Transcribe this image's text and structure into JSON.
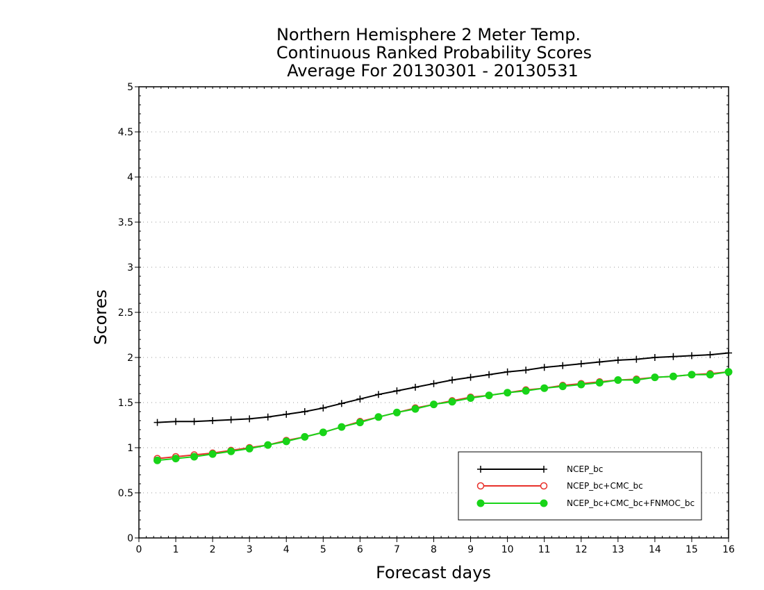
{
  "chart_data": {
    "type": "line",
    "title_lines": [
      "Northern Hemisphere 2 Meter Temp.",
      "Continuous Ranked Probability Scores",
      "Average For 20130301 - 20130531"
    ],
    "xlabel": "Forecast days",
    "ylabel": "Scores",
    "xlim": [
      0,
      16
    ],
    "ylim": [
      0,
      5
    ],
    "xticks": [
      0,
      1,
      2,
      3,
      4,
      5,
      6,
      7,
      8,
      9,
      10,
      11,
      12,
      13,
      14,
      15,
      16
    ],
    "yticks": [
      0,
      0.5,
      1,
      1.5,
      2,
      2.5,
      3,
      3.5,
      4,
      4.5,
      5
    ],
    "ytick_labels": [
      "0",
      "0.5",
      "1",
      "1.5",
      "2",
      "2.5",
      "3",
      "3.5",
      "4",
      "4.5",
      "5"
    ],
    "grid": "horizontal dotted",
    "legend_position": "bottom-right",
    "x": [
      0.5,
      1,
      1.5,
      2,
      2.5,
      3,
      3.5,
      4,
      4.5,
      5,
      5.5,
      6,
      6.5,
      7,
      7.5,
      8,
      8.5,
      9,
      9.5,
      10,
      10.5,
      11,
      11.5,
      12,
      12.5,
      13,
      13.5,
      14,
      14.5,
      15,
      15.5,
      16
    ],
    "series": [
      {
        "name": "NCEP_bc",
        "color": "#000000",
        "marker": "plus",
        "values": [
          1.28,
          1.29,
          1.29,
          1.3,
          1.31,
          1.32,
          1.34,
          1.37,
          1.4,
          1.44,
          1.49,
          1.54,
          1.59,
          1.63,
          1.67,
          1.71,
          1.75,
          1.78,
          1.81,
          1.84,
          1.86,
          1.89,
          1.91,
          1.93,
          1.95,
          1.97,
          1.98,
          2.0,
          2.01,
          2.02,
          2.03,
          2.05
        ]
      },
      {
        "name": "NCEP_bc+CMC_bc",
        "color": "#e8302a",
        "marker": "open-circle",
        "values": [
          0.88,
          0.9,
          0.92,
          0.94,
          0.97,
          1.0,
          1.03,
          1.08,
          1.12,
          1.17,
          1.23,
          1.29,
          1.34,
          1.39,
          1.44,
          1.48,
          1.52,
          1.56,
          1.58,
          1.61,
          1.64,
          1.66,
          1.69,
          1.71,
          1.73,
          1.75,
          1.76,
          1.78,
          1.79,
          1.81,
          1.82,
          1.84
        ]
      },
      {
        "name": "NCEP_bc+CMC_bc+FNMOC_bc",
        "color": "#18d418",
        "marker": "filled-circle",
        "values": [
          0.86,
          0.88,
          0.9,
          0.93,
          0.96,
          0.99,
          1.03,
          1.07,
          1.12,
          1.17,
          1.23,
          1.28,
          1.34,
          1.39,
          1.43,
          1.48,
          1.51,
          1.55,
          1.58,
          1.61,
          1.63,
          1.66,
          1.68,
          1.7,
          1.72,
          1.75,
          1.75,
          1.78,
          1.79,
          1.81,
          1.81,
          1.84
        ]
      }
    ]
  }
}
